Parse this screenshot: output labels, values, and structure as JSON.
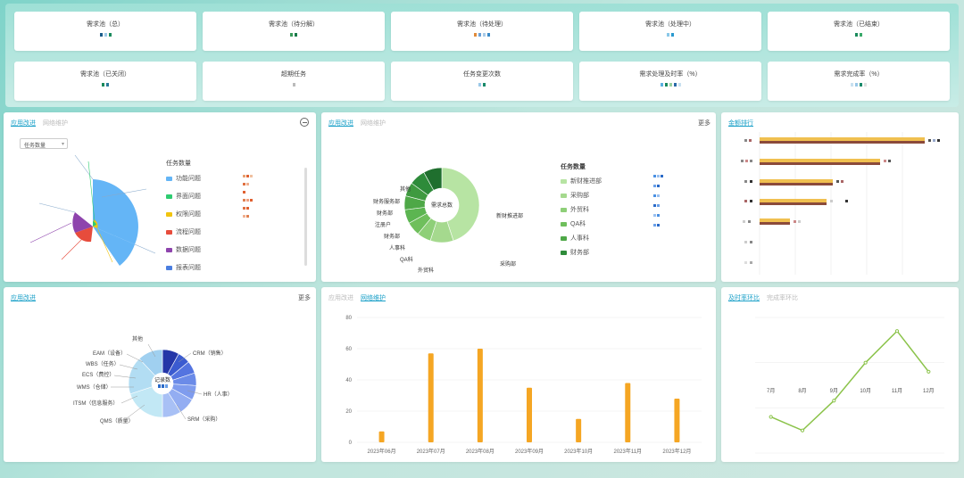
{
  "kpis_row1": [
    {
      "title": "需求池（总）"
    },
    {
      "title": "需求池（待分解）"
    },
    {
      "title": "需求池（待处理）"
    },
    {
      "title": "需求池（处理中）"
    },
    {
      "title": "需求池（已结束）"
    }
  ],
  "kpis_row2": [
    {
      "title": "需求池（已关闭）"
    },
    {
      "title": "超期任务"
    },
    {
      "title": "任务变更次数"
    },
    {
      "title": "需求处理及时率（%）"
    },
    {
      "title": "需求完成率（%）"
    }
  ],
  "panel1": {
    "tabs": [
      "应用改进",
      "网络维护"
    ],
    "select_value": "任务数量",
    "legend_title": "任务数量",
    "legend": [
      {
        "label": "功能问题",
        "color": "#64b5f6"
      },
      {
        "label": "界面问题",
        "color": "#2ecc71"
      },
      {
        "label": "权限问题",
        "color": "#f1c40f"
      },
      {
        "label": "流程问题",
        "color": "#e74c3c"
      },
      {
        "label": "数据问题",
        "color": "#8e44ad"
      },
      {
        "label": "报表问题",
        "color": "#4a7ee0"
      }
    ]
  },
  "panel2": {
    "tabs": [
      "应用改进",
      "网络维护"
    ],
    "more": "更多",
    "center_label": "需求总数",
    "legend_title": "任务数量",
    "slices": [
      "其他",
      "财务服务部",
      "财务部",
      "注册户",
      "财务部",
      "人事科",
      "QA科",
      "外贸科",
      "采购部",
      "新财推进部"
    ],
    "legend": [
      {
        "label": "新财推进部",
        "color": "#b7e4a3"
      },
      {
        "label": "采购部",
        "color": "#a5d98e"
      },
      {
        "label": "外贸科",
        "color": "#8ecf78"
      },
      {
        "label": "QA科",
        "color": "#6fbf5c"
      },
      {
        "label": "人事科",
        "color": "#4ea847"
      },
      {
        "label": "财务部",
        "color": "#2e8b3a"
      }
    ]
  },
  "panel3": {
    "tabs": [
      "金额排行"
    ],
    "colors": {
      "a": "#f0c050",
      "b": "#8b4a3a"
    }
  },
  "panel4": {
    "tabs": [
      "应用改进"
    ],
    "more": "更多",
    "center_label": "记录数",
    "labels": [
      "其他",
      "EAM（设备）",
      "WBS（任务）",
      "ECS（费控）",
      "WMS（仓储）",
      "ITSM（信息服务）",
      "QMS（质量）",
      "CRM（销售）",
      "HR（人事）",
      "SRM（采购）"
    ]
  },
  "panel5": {
    "tabs": [
      "应用改进",
      "网络维护"
    ]
  },
  "panel6": {
    "tabs": [
      "及时率环比",
      "完成率环比"
    ]
  },
  "chart_data": [
    {
      "type": "bar",
      "categories": [
        "2023年06月",
        "2023年07月",
        "2023年08月",
        "2023年09月",
        "2023年10月",
        "2023年11月",
        "2023年12月"
      ],
      "values": [
        7,
        57,
        60,
        35,
        15,
        38,
        28
      ],
      "ylim": [
        0,
        80
      ],
      "color": "#f5a623"
    },
    {
      "type": "line",
      "categories": [
        "7月",
        "8月",
        "9月",
        "10月",
        "11月",
        "12月"
      ],
      "values": [
        -10,
        -25,
        8,
        50,
        85,
        40
      ],
      "ylim": [
        -50,
        100
      ],
      "color": "#8bc34a"
    }
  ]
}
